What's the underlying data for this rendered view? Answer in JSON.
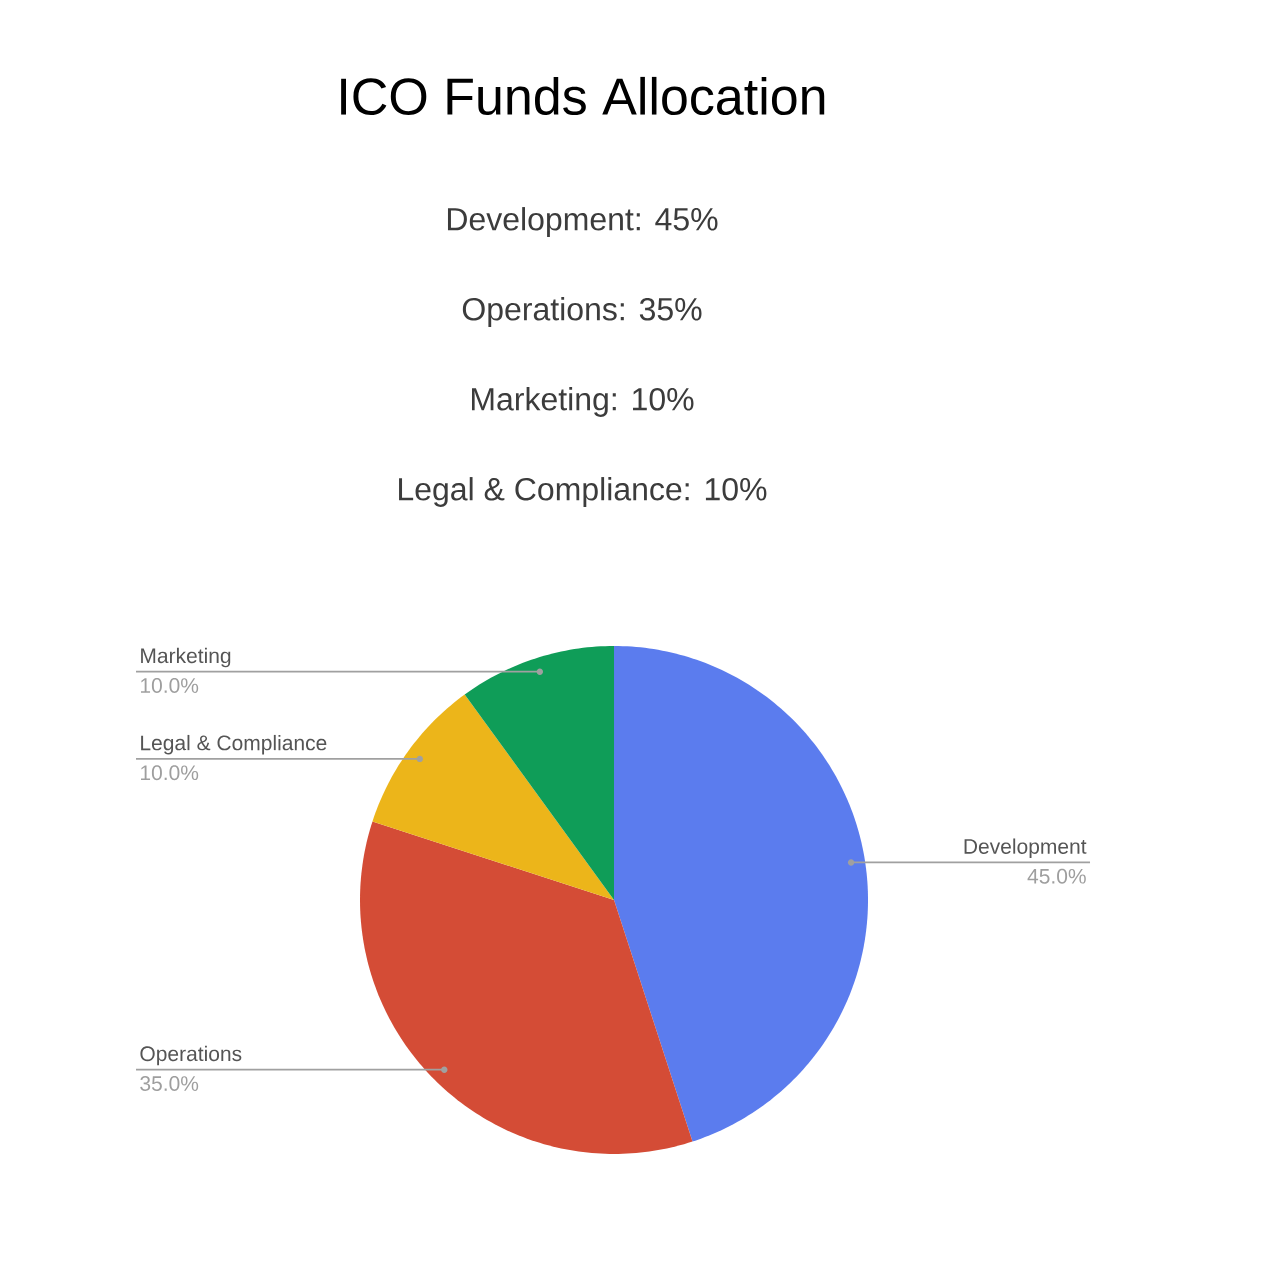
{
  "chart_data": {
    "type": "pie",
    "title": "ICO Funds Allocation",
    "annotations": [
      "Development: 45%",
      "Operations: 35%",
      "Marketing: 10%",
      "Legal & Compliance: 10%"
    ],
    "categories": [
      "Development",
      "Operations",
      "Legal & Compliance",
      "Marketing"
    ],
    "values": [
      45,
      35,
      10,
      10
    ],
    "colors": [
      "#5b7cee",
      "#d44c36",
      "#ecb51a",
      "#0f9d58"
    ],
    "value_labels": [
      "45.0%",
      "35.0%",
      "10.0%",
      "10.0%"
    ]
  }
}
